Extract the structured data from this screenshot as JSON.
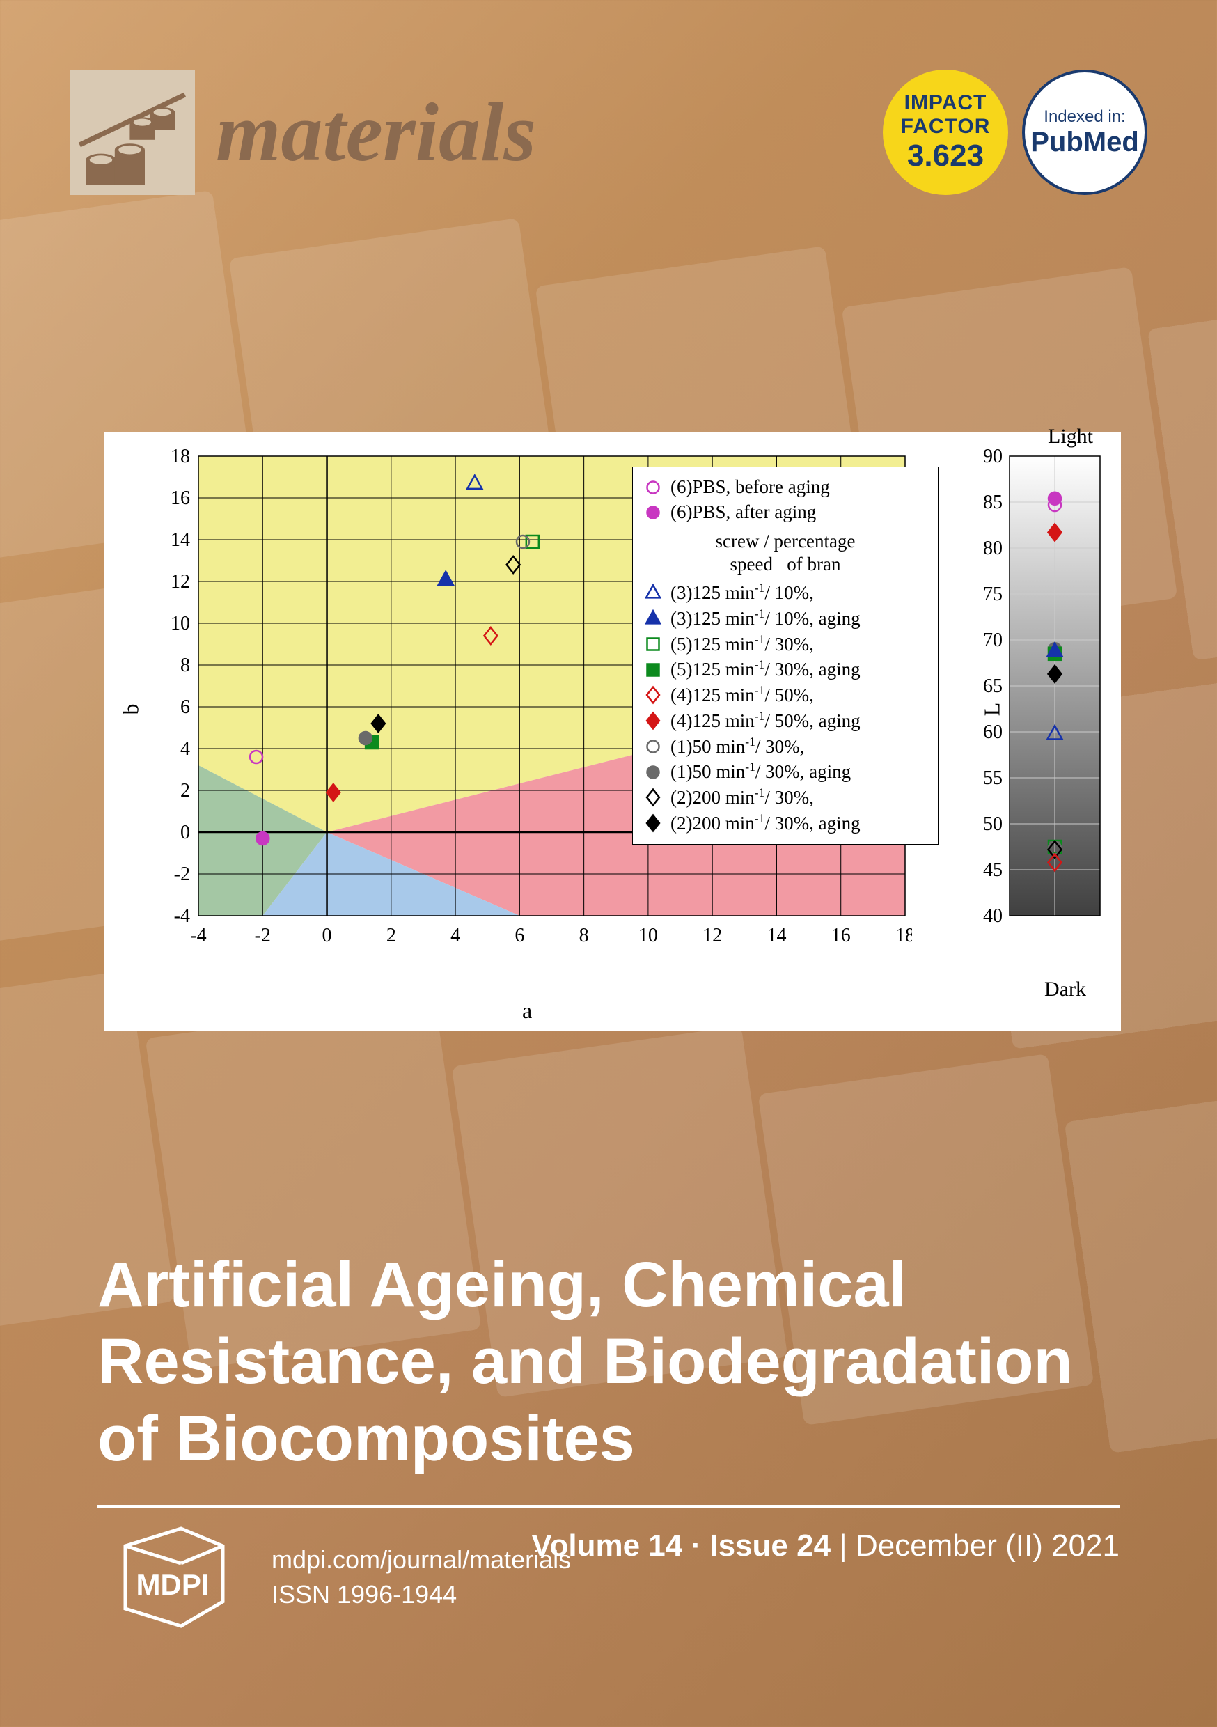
{
  "journal": {
    "name": "materials",
    "impact_factor_label1": "IMPACT",
    "impact_factor_label2": "FACTOR",
    "impact_factor_value": "3.623",
    "indexed_label": "Indexed in:",
    "indexed_in": "PubMed"
  },
  "chart_ab": {
    "type": "scatter",
    "xlim": [
      -4,
      18
    ],
    "ylim": [
      -4,
      18
    ],
    "xtick_step": 2,
    "ytick_step": 2,
    "xlabel": "a",
    "ylabel": "b",
    "background_regions": [
      {
        "shape": "poly",
        "fill": "#f2ee92",
        "points": [
          [
            -4,
            18
          ],
          [
            18,
            18
          ],
          [
            18,
            7
          ],
          [
            0,
            0
          ],
          [
            -4,
            3.2
          ]
        ]
      },
      {
        "shape": "poly",
        "fill": "#f29aa3",
        "points": [
          [
            18,
            7
          ],
          [
            0,
            0
          ],
          [
            6,
            -4
          ],
          [
            18,
            -4
          ]
        ]
      },
      {
        "shape": "poly",
        "fill": "#a4c7a4",
        "points": [
          [
            -4,
            3.2
          ],
          [
            0,
            0
          ],
          [
            -2,
            -4
          ],
          [
            -4,
            -4
          ]
        ]
      },
      {
        "shape": "poly",
        "fill": "#a8c9ea",
        "points": [
          [
            0,
            0
          ],
          [
            6,
            -4
          ],
          [
            -2,
            -4
          ]
        ]
      }
    ],
    "grid_color": "#000000",
    "grid_width": 1,
    "series": [
      {
        "id": "6-before",
        "label": "(6)PBS, before aging",
        "marker": "circle",
        "fill": "none",
        "stroke": "#c837c1",
        "a": -2.2,
        "b": 3.6
      },
      {
        "id": "6-after",
        "label": "(6)PBS, after aging",
        "marker": "circle",
        "fill": "#c837c1",
        "stroke": "#c837c1",
        "a": -2.0,
        "b": -0.3
      },
      {
        "id": "3-before",
        "label": "(3)125 min⁻¹/ 10%,",
        "marker": "triangle",
        "fill": "none",
        "stroke": "#1632aa",
        "a": 4.6,
        "b": 16.7
      },
      {
        "id": "3-after",
        "label": "(3)125 min⁻¹/ 10%, aging",
        "marker": "triangle",
        "fill": "#1632aa",
        "stroke": "#1632aa",
        "a": 3.7,
        "b": 12.1
      },
      {
        "id": "5-before",
        "label": "(5)125 min⁻¹/ 30%,",
        "marker": "square",
        "fill": "none",
        "stroke": "#0c8a1e",
        "a": 6.4,
        "b": 13.9
      },
      {
        "id": "5-after",
        "label": "(5)125 min⁻¹/ 30%, aging",
        "marker": "square",
        "fill": "#0c8a1e",
        "stroke": "#0c8a1e",
        "a": 1.4,
        "b": 4.3
      },
      {
        "id": "4-before",
        "label": "(4)125 min⁻¹/ 50%,",
        "marker": "diamond",
        "fill": "none",
        "stroke": "#d41515",
        "a": 5.1,
        "b": 9.4
      },
      {
        "id": "4-after",
        "label": "(4)125 min⁻¹/ 50%, aging",
        "marker": "diamond",
        "fill": "#d41515",
        "stroke": "#d41515",
        "a": 0.2,
        "b": 1.9
      },
      {
        "id": "1-before",
        "label": "(1)50 min⁻¹/ 30%,",
        "marker": "circle",
        "fill": "none",
        "stroke": "#6a6a6a",
        "a": 6.1,
        "b": 13.9
      },
      {
        "id": "1-after",
        "label": "(1)50 min⁻¹/ 30%, aging",
        "marker": "circle",
        "fill": "#6a6a6a",
        "stroke": "#6a6a6a",
        "a": 1.2,
        "b": 4.5
      },
      {
        "id": "2-before",
        "label": "(2)200 min⁻¹/ 30%,",
        "marker": "diamond",
        "fill": "none",
        "stroke": "#000000",
        "a": 5.8,
        "b": 12.8
      },
      {
        "id": "2-after",
        "label": "(2)200 min⁻¹/ 30%, aging",
        "marker": "diamond",
        "fill": "#000000",
        "stroke": "#000000",
        "a": 1.6,
        "b": 5.2
      }
    ],
    "legend_header_line1": "screw / percentage",
    "legend_header_line2": "speed   of bran"
  },
  "chart_L": {
    "type": "scatter",
    "ylim": [
      40,
      90
    ],
    "ytick_step": 5,
    "ylabel": "L",
    "top_label": "Light",
    "bottom_label": "Dark",
    "background": "gradient",
    "grad_top": "#ffffff",
    "grad_bot": "#404040",
    "grid_color": "#cccccc",
    "points": [
      {
        "id": "6-after",
        "marker": "circle",
        "fill": "#c837c1",
        "stroke": "#c837c1",
        "L": 85.4
      },
      {
        "id": "6-before",
        "marker": "circle",
        "fill": "none",
        "stroke": "#c837c1",
        "L": 84.7
      },
      {
        "id": "4-after",
        "marker": "diamond",
        "fill": "#d41515",
        "stroke": "#d41515",
        "L": 81.7
      },
      {
        "id": "1-after",
        "marker": "circle",
        "fill": "#6a6a6a",
        "stroke": "#6a6a6a",
        "L": 69.0
      },
      {
        "id": "5-after",
        "marker": "square",
        "fill": "#0c8a1e",
        "stroke": "#0c8a1e",
        "L": 68.5
      },
      {
        "id": "3-after",
        "marker": "triangle",
        "fill": "#1632aa",
        "stroke": "#1632aa",
        "L": 68.8
      },
      {
        "id": "2-after",
        "marker": "diamond",
        "fill": "#000000",
        "stroke": "#000000",
        "L": 66.3
      },
      {
        "id": "3-before",
        "marker": "triangle",
        "fill": "none",
        "stroke": "#1632aa",
        "L": 59.8
      },
      {
        "id": "5-before",
        "marker": "square",
        "fill": "none",
        "stroke": "#0c8a1e",
        "L": 47.5
      },
      {
        "id": "1-before",
        "marker": "circle",
        "fill": "none",
        "stroke": "#6a6a6a",
        "L": 47.4
      },
      {
        "id": "2-before",
        "marker": "diamond",
        "fill": "none",
        "stroke": "#000000",
        "L": 47.2
      },
      {
        "id": "4-before",
        "marker": "diamond",
        "fill": "none",
        "stroke": "#d41515",
        "L": 45.8
      }
    ]
  },
  "article": {
    "title": "Artificial Ageing, Chemical Resistance, and Biodegradation of Biocomposites",
    "volume": "Volume 14",
    "issue": "Issue 24",
    "date": "December (II) 2021"
  },
  "footer": {
    "publisher": "MDPI",
    "url": "mdpi.com/journal/materials",
    "issn_label": "ISSN 1996-1944"
  }
}
